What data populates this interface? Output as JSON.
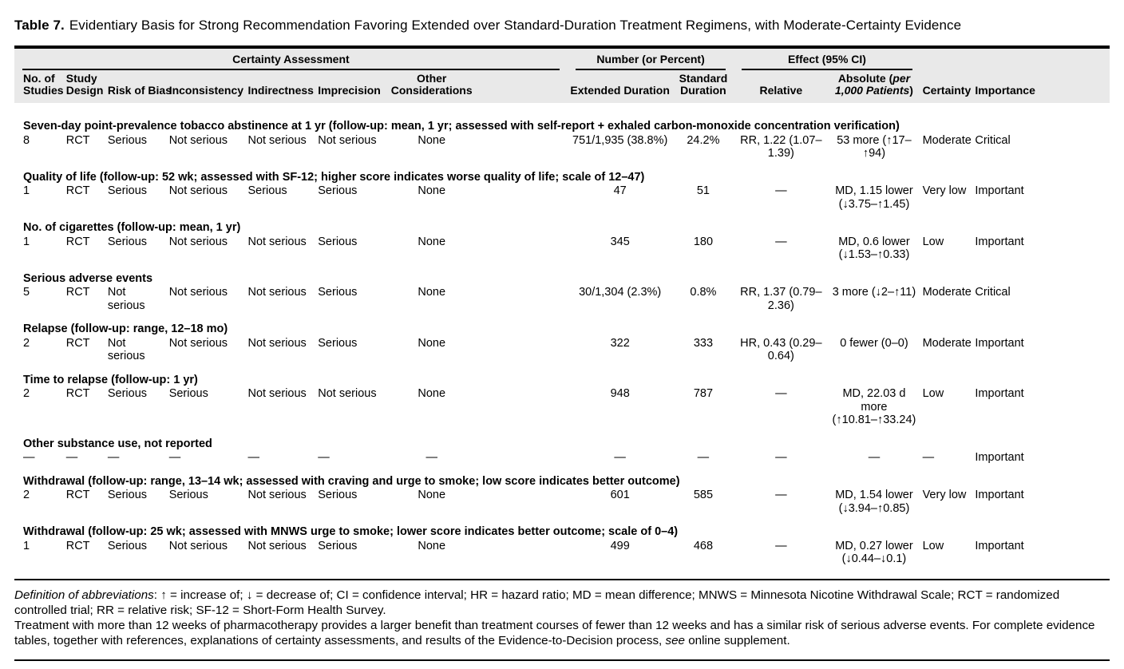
{
  "title": {
    "label": "Table 7.",
    "text": "Evidentiary Basis for Strong Recommendation Favoring Extended over Standard-Duration Treatment Regimens, with Moderate-Certainty Evidence"
  },
  "table": {
    "groups": [
      {
        "label": "Certainty Assessment",
        "span": 7
      },
      {
        "label": "Number (or Percent)",
        "span": 2
      },
      {
        "label": "Effect (95% CI)",
        "span": 2
      }
    ],
    "columns": [
      {
        "key": "no-of-studies",
        "label": "No. of Studies"
      },
      {
        "key": "study-design",
        "label": "Study Design"
      },
      {
        "key": "risk-of-bias",
        "label": "Risk of Bias"
      },
      {
        "key": "inconsistency",
        "label": "Inconsistency"
      },
      {
        "key": "indirectness",
        "label": "Indirectness"
      },
      {
        "key": "imprecision",
        "label": "Imprecision"
      },
      {
        "key": "other-considerations",
        "label": "Other Considerations"
      },
      {
        "key": "extended-duration",
        "label": "Extended Duration"
      },
      {
        "key": "standard-duration",
        "label": "Standard Duration"
      },
      {
        "key": "relative",
        "label": "Relative"
      },
      {
        "key": "absolute",
        "label": "Absolute (",
        "italic": "per 1,000 Patients",
        "suffix": ")"
      },
      {
        "key": "certainty",
        "label": "Certainty"
      },
      {
        "key": "importance",
        "label": "Importance"
      }
    ],
    "sections": [
      {
        "title": "Seven-day point-prevalence tobacco abstinence at 1 yr (follow-up: mean, 1 yr; assessed with self-report + exhaled carbon-monoxide concentration verification)",
        "cells": [
          "8",
          "RCT",
          "Serious",
          "Not serious",
          "Not serious",
          "Not serious",
          "None",
          "751/1,935 (38.8%)",
          "24.2%",
          "RR, 1.22 (1.07–1.39)",
          "53 more (↑17–↑94)",
          "Moderate",
          "Critical"
        ]
      },
      {
        "title": "Quality of life (follow-up: 52 wk; assessed with SF-12; higher score indicates worse quality of life; scale of 12–47)",
        "cells": [
          "1",
          "RCT",
          "Serious",
          "Not serious",
          "Serious",
          "Serious",
          "None",
          "47",
          "51",
          "—",
          "MD, 1.15 lower\n(↓3.75–↑1.45)",
          "Very low",
          "Important"
        ]
      },
      {
        "title": "No. of cigarettes (follow-up: mean, 1 yr)",
        "cells": [
          "1",
          "RCT",
          "Serious",
          "Not serious",
          "Not serious",
          "Serious",
          "None",
          "345",
          "180",
          "—",
          "MD, 0.6 lower\n(↓1.53–↑0.33)",
          "Low",
          "Important"
        ]
      },
      {
        "title": "Serious adverse events",
        "cells": [
          "5",
          "RCT",
          "Not serious",
          "Not serious",
          "Not serious",
          "Serious",
          "None",
          "30/1,304 (2.3%)",
          "0.8%",
          "RR, 1.37 (0.79–2.36)",
          "3 more (↓2–↑11)",
          "Moderate",
          "Critical"
        ]
      },
      {
        "title": "Relapse (follow-up: range, 12–18 mo)",
        "cells": [
          "2",
          "RCT",
          "Not serious",
          "Not serious",
          "Not serious",
          "Serious",
          "None",
          "322",
          "333",
          "HR, 0.43 (0.29–0.64)",
          "0 fewer (0–0)",
          "Moderate",
          "Important"
        ]
      },
      {
        "title": "Time to relapse (follow-up: 1 yr)",
        "cells": [
          "2",
          "RCT",
          "Serious",
          "Serious",
          "Not serious",
          "Not serious",
          "None",
          "948",
          "787",
          "—",
          "MD, 22.03 d more\n(↑10.81–↑33.24)",
          "Low",
          "Important"
        ]
      },
      {
        "title": "Other substance use, not reported",
        "cells": [
          "—",
          "—",
          "—",
          "—",
          "—",
          "—",
          "—",
          "—",
          "—",
          "—",
          "—",
          "—",
          "Important"
        ]
      },
      {
        "title": "Withdrawal (follow-up: range, 13–14 wk; assessed with craving and urge to smoke; low score indicates better outcome)",
        "cells": [
          "2",
          "RCT",
          "Serious",
          "Serious",
          "Not serious",
          "Serious",
          "None",
          "601",
          "585",
          "—",
          "MD, 1.54 lower\n(↓3.94–↑0.85)",
          "Very low",
          "Important"
        ]
      },
      {
        "title": "Withdrawal (follow-up: 25 wk; assessed with MNWS urge to smoke; lower score indicates better outcome; scale of 0–4)",
        "cells": [
          "1",
          "RCT",
          "Serious",
          "Not serious",
          "Not serious",
          "Serious",
          "None",
          "499",
          "468",
          "—",
          "MD, 0.27 lower\n(↓0.44–↓0.1)",
          "Low",
          "Important"
        ]
      }
    ]
  },
  "footnotes": {
    "abbrev_italic": "Definition of abbreviations",
    "abbrev_rest": ": ↑ = increase of; ↓ = decrease of; CI = confidence interval; HR = hazard ratio; MD = mean difference; MNWS = Minnesota Nicotine Withdrawal Scale; RCT = randomized controlled trial; RR = relative risk; SF-12 = Short-Form Health Survey.",
    "note_part1": "Treatment with more than 12 weeks of pharmacotherapy provides a larger benefit than treatment courses of fewer than 12 weeks and has a similar risk of serious adverse events. For complete evidence tables, together with references, explanations of certainty assessments, and results of the Evidence-to-Decision process, ",
    "note_italic": "see",
    "note_part2": " online supplement."
  }
}
